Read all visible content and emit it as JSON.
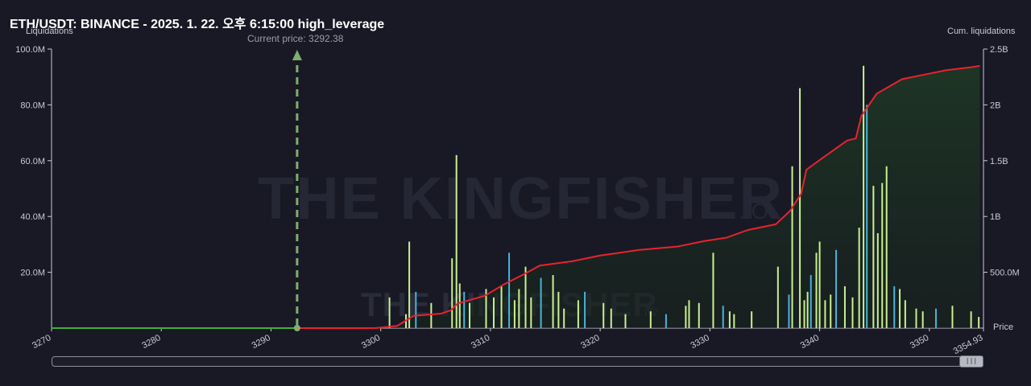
{
  "header": {
    "title": "ETH/USDT: BINANCE - 2025. 1. 22. 오후 6:15:00 high_leverage",
    "current_price_label": "Current price: 3292.38"
  },
  "watermark": {
    "text": "THE KINGFISHER",
    "suffix": ".IO"
  },
  "colors": {
    "background": "#181925",
    "cum_before": "#3fae3a",
    "cum_after": "#e8232c",
    "current_price_marker": "#7fae6e",
    "bar_main": "#c9f08f",
    "bar_alt": "#4bb3d9"
  },
  "chart_data": {
    "type": "bar+line",
    "title": "ETH/USDT: BINANCE - 2025. 1. 22. 오후 6:15:00 high_leverage",
    "xlabel": "Price",
    "ylabel": "Liquidations",
    "y2label": "Cum. liquidations",
    "current_price": 3292.38,
    "xlim": [
      3270,
      3354.93
    ],
    "ylim": [
      0,
      100000000
    ],
    "y2lim": [
      0,
      2500000000
    ],
    "x_ticks": [
      "3270",
      "3280",
      "3290",
      "3300",
      "3310",
      "3320",
      "3330",
      "3340",
      "3350",
      "3354.93"
    ],
    "y_ticks": [
      "20.0M",
      "40.0M",
      "60.0M",
      "80.0M",
      "100.0M"
    ],
    "y2_ticks": [
      "500.0M",
      "1B",
      "1.5B",
      "2B",
      "2.5B"
    ],
    "bars": {
      "x": [
        3300.8,
        3302.3,
        3302.6,
        3303.2,
        3304.6,
        3306.5,
        3306.9,
        3307.2,
        3307.6,
        3308.1,
        3309.6,
        3310.3,
        3311.0,
        3311.7,
        3312.2,
        3312.6,
        3313.2,
        3313.7,
        3314.6,
        3315.7,
        3316.2,
        3316.7,
        3318.0,
        3318.6,
        3320.3,
        3321.0,
        3322.3,
        3324.6,
        3326.0,
        3327.8,
        3328.1,
        3329.0,
        3330.3,
        3331.2,
        3331.8,
        3332.2,
        3333.8,
        3336.2,
        3337.2,
        3337.5,
        3338.2,
        3338.6,
        3338.9,
        3339.2,
        3339.7,
        3340.0,
        3340.5,
        3341.0,
        3341.5,
        3342.3,
        3343.0,
        3343.6,
        3344.0,
        3344.3,
        3344.9,
        3345.3,
        3345.7,
        3346.1,
        3346.8,
        3347.3,
        3347.8,
        3348.8,
        3349.4,
        3350.6,
        3352.1,
        3353.8,
        3354.5
      ],
      "values": [
        11,
        5,
        31,
        13,
        9,
        25,
        62,
        16,
        13,
        9,
        14,
        11,
        15,
        27,
        10,
        14,
        22,
        11,
        18,
        19,
        13,
        7,
        10,
        13,
        9,
        7,
        5,
        6,
        5,
        8,
        10,
        9,
        27,
        8,
        6,
        5,
        6,
        22,
        12,
        58,
        86,
        10,
        13,
        19,
        27,
        31,
        10,
        12,
        28,
        15,
        11,
        36,
        94,
        80,
        51,
        34,
        52,
        58,
        15,
        14,
        10,
        7,
        6,
        7,
        8,
        6,
        4
      ]
    },
    "cumulative": {
      "x": [
        3270,
        3292.38,
        3299.5,
        3301.5,
        3302.5,
        3303.0,
        3305.5,
        3306.4,
        3307.0,
        3309.5,
        3311.2,
        3313.0,
        3314.5,
        3317.5,
        3320.0,
        3323.5,
        3327.0,
        3329.5,
        3331.5,
        3333.5,
        3336.0,
        3337.3,
        3338.3,
        3338.8,
        3340.2,
        3342.5,
        3343.3,
        3343.8,
        3345.2,
        3347.5,
        3349.5,
        3351.5,
        3354.0,
        3354.6
      ],
      "values": [
        0,
        0,
        0,
        20000000,
        80000000,
        110000000,
        130000000,
        160000000,
        220000000,
        290000000,
        390000000,
        480000000,
        560000000,
        600000000,
        650000000,
        700000000,
        730000000,
        780000000,
        810000000,
        880000000,
        930000000,
        1050000000,
        1200000000,
        1420000000,
        1520000000,
        1680000000,
        1700000000,
        1900000000,
        2100000000,
        2230000000,
        2270000000,
        2310000000,
        2340000000,
        2350000000
      ]
    }
  }
}
